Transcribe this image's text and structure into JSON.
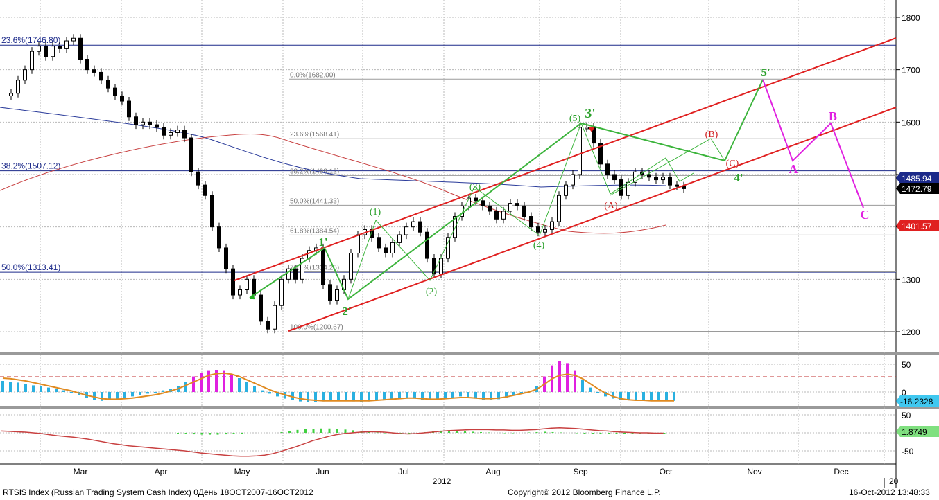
{
  "footer": {
    "left": "RTSI$ Index (Russian Trading System Cash Index) 0День 18OCT2007-16OCT2012",
    "center": "Copyright© 2012 Bloomberg Finance L.P.",
    "right": "16-Oct-2012 13:48:33"
  },
  "colors": {
    "grid": "#b8b8b8",
    "red_channel": "#e02020",
    "green_wave": "#3cb43c",
    "magenta_wave": "#e020e0",
    "blue_ma": "#2a3b9a",
    "red_ma": "#c84040",
    "histogram": "#2ab0e0",
    "histogram_hi": "#e020e0",
    "signal": "#e08a20",
    "osc_bars": "#40d040"
  },
  "chart_data": [
    {
      "type": "line",
      "panel": "price",
      "x_labels": [
        "Mar",
        "Apr",
        "May",
        "Jun",
        "Jul",
        "Aug",
        "Sep",
        "Oct",
        "Nov",
        "Dec"
      ],
      "year_label": "2012",
      "year_label_right": "20",
      "y_ticks": [
        1200,
        1300,
        1400,
        1500,
        1600,
        1700,
        1800
      ],
      "ylim": [
        1140,
        1840
      ],
      "series": [
        {
          "values": [
            1650,
            1655,
            1680,
            1700,
            1735,
            1745,
            1725,
            1745,
            1740,
            1755,
            1760,
            1720,
            1700,
            1695,
            1680,
            1665,
            1650,
            1640,
            1610,
            1595,
            1600,
            1595,
            1590,
            1575,
            1580,
            1585,
            1570,
            1505,
            1480,
            1460,
            1400,
            1360,
            1320,
            1270,
            1280,
            1300,
            1270,
            1220,
            1205,
            1250,
            1300,
            1320,
            1300,
            1340,
            1355,
            1360,
            1290,
            1260,
            1280,
            1300,
            1350,
            1385,
            1395,
            1380,
            1360,
            1350,
            1370,
            1385,
            1400,
            1410,
            1390,
            1340,
            1310,
            1340,
            1380,
            1420,
            1440,
            1455,
            1450,
            1440,
            1430,
            1415,
            1430,
            1445,
            1440,
            1420,
            1400,
            1390,
            1395,
            1410,
            1460,
            1480,
            1500,
            1590,
            1590,
            1560,
            1520,
            1500,
            1490,
            1460,
            1485,
            1505,
            1500,
            1495,
            1490,
            1495,
            1480,
            1478,
            1473
          ]
        }
      ],
      "current_values": [
        "1485.94",
        "1472.79",
        "1401.57"
      ],
      "fibonacci_left": [
        {
          "label": "23.6%(1746.80)",
          "value": 1746.8
        },
        {
          "label": "38.2%(1507.12)",
          "value": 1507.12
        },
        {
          "label": "50.0%(1313.41)",
          "value": 1313.41
        }
      ],
      "fibonacci_mid": [
        {
          "label": "0.0%(1682.00)",
          "value": 1682
        },
        {
          "label": "23.6%(1568.41)",
          "value": 1568.41
        },
        {
          "label": "38.2%(1498.12)",
          "value": 1498.12
        },
        {
          "label": "50.0%(1441.33)",
          "value": 1441.33
        },
        {
          "label": "61.8%(1384.54)",
          "value": 1384.54
        },
        {
          "label": "76.4%(1314.25)",
          "value": 1314.25
        },
        {
          "label": "100.0%(1200.67)",
          "value": 1200.67
        }
      ],
      "wave_labels": [
        {
          "text": "1'",
          "color": "green"
        },
        {
          "text": "2'",
          "color": "green"
        },
        {
          "text": "3'",
          "color": "green"
        },
        {
          "text": "4'",
          "color": "green"
        },
        {
          "text": "5'",
          "color": "green"
        },
        {
          "text": "(1)",
          "color": "green"
        },
        {
          "text": "(2)",
          "color": "green"
        },
        {
          "text": "(3)",
          "color": "green"
        },
        {
          "text": "(4)",
          "color": "green"
        },
        {
          "text": "(5)",
          "color": "green"
        },
        {
          "text": "(A)",
          "color": "red"
        },
        {
          "text": "(B)",
          "color": "red"
        },
        {
          "text": "(C)",
          "color": "red"
        },
        {
          "text": "A",
          "color": "magenta"
        },
        {
          "text": "B",
          "color": "magenta"
        },
        {
          "text": "C",
          "color": "magenta"
        }
      ]
    },
    {
      "type": "bar",
      "panel": "macd",
      "y_ticks": [
        50,
        0
      ],
      "current_value": "-16.2328",
      "histogram": [
        20,
        18,
        17,
        15,
        12,
        10,
        8,
        5,
        3,
        0,
        -5,
        -10,
        -14,
        -16,
        -15,
        -12,
        -10,
        -8,
        -5,
        -3,
        0,
        3,
        6,
        10,
        18,
        28,
        34,
        38,
        40,
        38,
        32,
        25,
        18,
        10,
        3,
        -3,
        -8,
        -12,
        -15,
        -17,
        -18,
        -18,
        -17,
        -16,
        -15,
        -16,
        -17,
        -18,
        -17,
        -15,
        -13,
        -12,
        -10,
        -10,
        -12,
        -14,
        -15,
        -14,
        -12,
        -10,
        -8,
        -10,
        -12,
        -14,
        -15,
        -13,
        -10,
        -6,
        -2,
        2,
        10,
        28,
        48,
        55,
        52,
        38,
        22,
        8,
        -2,
        -8,
        -12,
        -14,
        -15,
        -15,
        -15,
        -16,
        -16,
        -16,
        -16
      ],
      "signal": [
        25,
        24,
        22,
        20,
        17,
        14,
        11,
        8,
        5,
        2,
        -2,
        -6,
        -9,
        -12,
        -13,
        -13,
        -12,
        -11,
        -9,
        -7,
        -5,
        -2,
        2,
        6,
        12,
        18,
        24,
        30,
        33,
        34,
        32,
        28,
        22,
        16,
        10,
        4,
        -1,
        -5,
        -9,
        -12,
        -14,
        -15,
        -16,
        -16,
        -16,
        -16,
        -16,
        -16,
        -16,
        -15,
        -14,
        -13,
        -12,
        -11,
        -11,
        -12,
        -13,
        -13,
        -12,
        -11,
        -10,
        -10,
        -11,
        -12,
        -12,
        -11,
        -9,
        -6,
        -3,
        0,
        5,
        14,
        24,
        30,
        32,
        30,
        24,
        15,
        6,
        -2,
        -8,
        -12,
        -14,
        -15,
        -15,
        -16,
        -16,
        -16,
        -16
      ]
    },
    {
      "type": "line",
      "panel": "oscillator",
      "y_ticks": [
        50,
        0,
        -50
      ],
      "current_value": "1.8749",
      "line": [
        5,
        4,
        3,
        2,
        0,
        -2,
        -5,
        -8,
        -10,
        -12,
        -15,
        -18,
        -22,
        -26,
        -30,
        -33,
        -36,
        -38,
        -40,
        -42,
        -44,
        -46,
        -48,
        -50,
        -53,
        -56,
        -58,
        -60,
        -62,
        -64,
        -65,
        -65,
        -64,
        -62,
        -58,
        -52,
        -45,
        -38,
        -30,
        -22,
        -16,
        -10,
        -5,
        -2,
        0,
        2,
        3,
        3,
        2,
        0,
        -2,
        -3,
        -2,
        0,
        2,
        4,
        6,
        7,
        8,
        9,
        9,
        9,
        8,
        8,
        7,
        7,
        8,
        9,
        11,
        13,
        14,
        13,
        12,
        10,
        8,
        6,
        5,
        3,
        2,
        1,
        0,
        0,
        -1,
        -1
      ],
      "bars": [
        0,
        0,
        0,
        0,
        0,
        0,
        0,
        0,
        0,
        0,
        0,
        0,
        0,
        0,
        0,
        0,
        0,
        0,
        0,
        0,
        0,
        0,
        -2,
        -3,
        -4,
        -5,
        -5,
        -5,
        -4,
        -3,
        -2,
        0,
        0,
        0,
        0,
        2,
        5,
        8,
        10,
        11,
        12,
        12,
        11,
        9,
        7,
        5,
        3,
        1,
        -1,
        -2,
        -3,
        -2,
        0,
        2,
        4,
        6,
        7,
        6,
        5,
        3,
        2,
        1,
        0,
        -1,
        -1,
        0,
        1,
        2,
        3,
        2,
        1,
        0,
        -1,
        -2,
        -2,
        -2,
        -2,
        -2,
        -2,
        -2,
        -2,
        -2,
        -2,
        -2
      ]
    }
  ]
}
